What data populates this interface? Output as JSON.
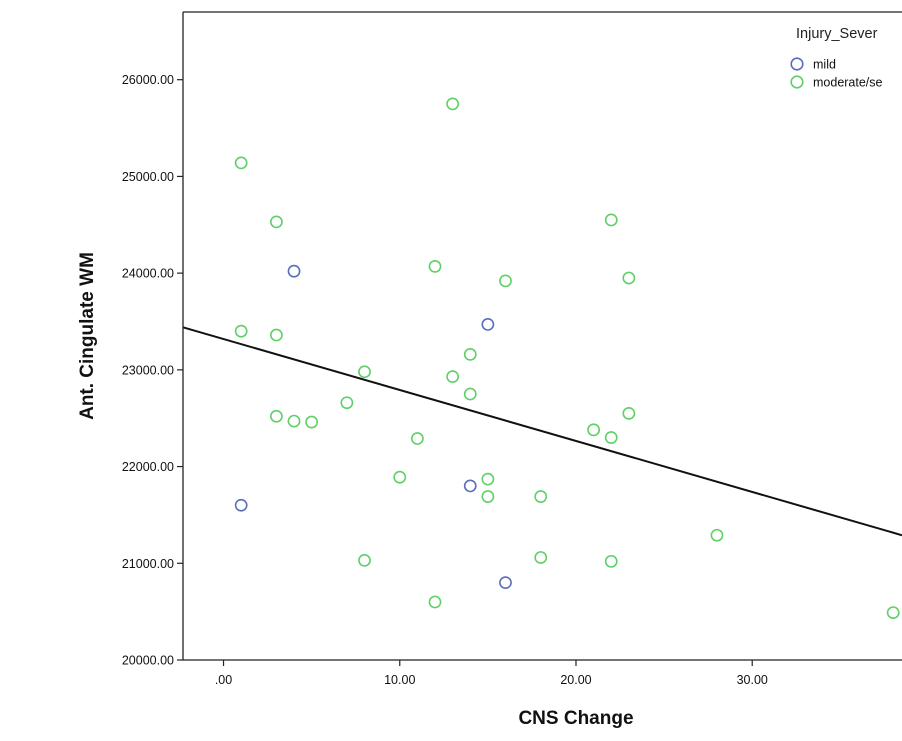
{
  "chart_data": {
    "type": "scatter",
    "xlabel": "CNS Change",
    "ylabel": "Ant. Cingulate WM",
    "xlim": [
      -2.3,
      38.5
    ],
    "ylim": [
      20000,
      26700
    ],
    "x_ticks": [
      {
        "value": 0,
        "label": ".00"
      },
      {
        "value": 10,
        "label": "10.00"
      },
      {
        "value": 20,
        "label": "20.00"
      },
      {
        "value": 30,
        "label": "30.00"
      }
    ],
    "y_ticks": [
      {
        "value": 20000,
        "label": "20000.00"
      },
      {
        "value": 21000,
        "label": "21000.00"
      },
      {
        "value": 22000,
        "label": "22000.00"
      },
      {
        "value": 23000,
        "label": "23000.00"
      },
      {
        "value": 24000,
        "label": "24000.00"
      },
      {
        "value": 25000,
        "label": "25000.00"
      },
      {
        "value": 26000,
        "label": "26000.00"
      }
    ],
    "legend": {
      "title": "Injury_Sever",
      "position": "top-right"
    },
    "series": [
      {
        "name": "mild",
        "color": "#5b6fb8",
        "marker": "open-circle",
        "points": [
          [
            4,
            24020
          ],
          [
            1,
            21600
          ],
          [
            14,
            21800
          ],
          [
            15,
            23470
          ],
          [
            16,
            20800
          ]
        ]
      },
      {
        "name": "moderate/se",
        "color": "#5fd068",
        "marker": "open-circle",
        "points": [
          [
            1,
            25140
          ],
          [
            1,
            23400
          ],
          [
            3,
            24530
          ],
          [
            3,
            23360
          ],
          [
            3,
            22520
          ],
          [
            4,
            22470
          ],
          [
            5,
            22460
          ],
          [
            7,
            22660
          ],
          [
            8,
            22980
          ],
          [
            8,
            21030
          ],
          [
            10,
            21890
          ],
          [
            11,
            22290
          ],
          [
            12,
            24070
          ],
          [
            12,
            20600
          ],
          [
            13,
            25750
          ],
          [
            13,
            22930
          ],
          [
            14,
            23160
          ],
          [
            14,
            22750
          ],
          [
            15,
            21870
          ],
          [
            15,
            21690
          ],
          [
            16,
            23920
          ],
          [
            18,
            21690
          ],
          [
            18,
            21060
          ],
          [
            21,
            22380
          ],
          [
            22,
            24550
          ],
          [
            22,
            22300
          ],
          [
            22,
            21020
          ],
          [
            23,
            23950
          ],
          [
            23,
            22550
          ],
          [
            28,
            21290
          ],
          [
            38,
            20490
          ]
        ]
      }
    ],
    "fit_line": {
      "type": "linear",
      "color": "#111111",
      "x": [
        -2.3,
        38.5
      ],
      "y": [
        23440,
        21290
      ]
    },
    "grid": false
  }
}
